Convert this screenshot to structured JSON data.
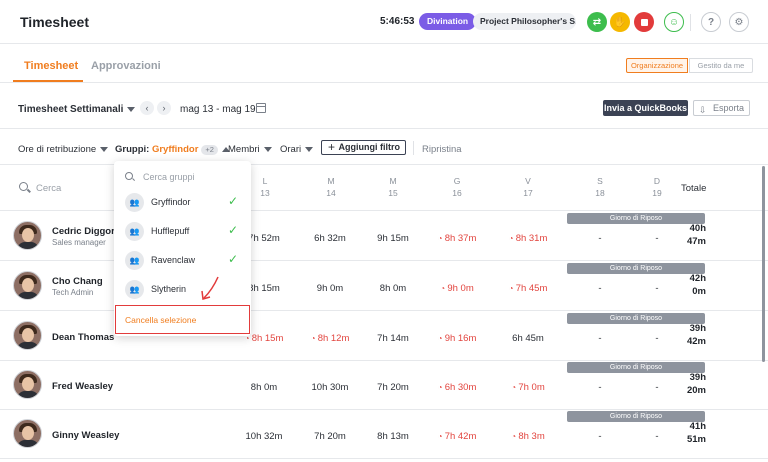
{
  "header": {
    "title": "Timesheet",
    "clock": "5:46:53",
    "activity_badge": "Divination",
    "project_badge": "Project Philosopher's S...",
    "colors": {
      "accent": "#f07d1f",
      "activity": "#7b5ce6",
      "qb_button": "#3b4254",
      "late": "#e2453f",
      "ok": "#3dbd4d"
    },
    "icons": [
      "refresh-icon",
      "hand-icon",
      "stop-icon",
      "user-icon",
      "help-icon",
      "settings-icon"
    ]
  },
  "tabs": {
    "timesheet": "Timesheet",
    "approvals": "Approvazioni"
  },
  "scope_toggle": {
    "org": "Organizzazione",
    "managed": "Gestito da me"
  },
  "period": {
    "label": "Timesheet Settimanali",
    "range": "mag 13 - mag 19",
    "quickbooks_button": "Invia a QuickBooks",
    "export_button": "Esporta"
  },
  "filters": {
    "pay_hours": "Ore di retribuzione",
    "groups_label": "Gruppi",
    "groups_value": "Gryffindor",
    "groups_extra": "+2",
    "members": "Membri",
    "schedules": "Orari",
    "add_filter": "Aggiungi filtro",
    "reset": "Ripristina"
  },
  "table": {
    "search_placeholder": "Cerca",
    "days": [
      {
        "letter": "L",
        "num": "13"
      },
      {
        "letter": "M",
        "num": "14"
      },
      {
        "letter": "M",
        "num": "15"
      },
      {
        "letter": "G",
        "num": "16"
      },
      {
        "letter": "V",
        "num": "17"
      },
      {
        "letter": "S",
        "num": "18"
      },
      {
        "letter": "D",
        "num": "19"
      }
    ],
    "total_label": "Totale",
    "rest_day_label": "Giorno di Riposo",
    "rows": [
      {
        "name": "Cedric Diggory",
        "role": "Sales manager",
        "cells": [
          "7h 52m",
          "6h 32m",
          "9h 15m",
          "8h 37m",
          "8h 31m"
        ],
        "late": [
          false,
          false,
          false,
          true,
          true
        ],
        "weekend": [
          "-",
          "-"
        ],
        "total_h": "40h",
        "total_m": "47m"
      },
      {
        "name": "Cho Chang",
        "role": "Tech Admin",
        "cells": [
          "8h 15m",
          "9h 0m",
          "8h 0m",
          "9h 0m",
          "7h 45m"
        ],
        "late": [
          false,
          false,
          false,
          true,
          true
        ],
        "weekend": [
          "-",
          "-"
        ],
        "total_h": "42h",
        "total_m": "0m"
      },
      {
        "name": "Dean Thomas",
        "role": "",
        "cells": [
          "8h 15m",
          "8h 12m",
          "7h 14m",
          "9h 16m",
          "6h 45m"
        ],
        "late": [
          true,
          true,
          false,
          true,
          false
        ],
        "weekend": [
          "-",
          "-"
        ],
        "total_h": "39h",
        "total_m": "42m"
      },
      {
        "name": "Fred Weasley",
        "role": "",
        "cells": [
          "8h 0m",
          "10h 30m",
          "7h 20m",
          "6h 30m",
          "7h 0m"
        ],
        "late": [
          false,
          false,
          false,
          true,
          true
        ],
        "weekend": [
          "-",
          "-"
        ],
        "total_h": "39h",
        "total_m": "20m"
      },
      {
        "name": "Ginny Weasley",
        "role": "",
        "cells": [
          "10h 32m",
          "7h 20m",
          "8h 13m",
          "7h 42m",
          "8h 3m"
        ],
        "late": [
          false,
          false,
          false,
          true,
          true
        ],
        "weekend": [
          "-",
          "-"
        ],
        "total_h": "41h",
        "total_m": "51m"
      }
    ]
  },
  "group_dropdown": {
    "search_placeholder": "Cerca gruppi",
    "items": [
      {
        "label": "Gryffindor",
        "checked": true
      },
      {
        "label": "Hufflepuff",
        "checked": true
      },
      {
        "label": "Ravenclaw",
        "checked": true
      },
      {
        "label": "Slytherin",
        "checked": false
      }
    ],
    "clear_label": "Cancella selezione"
  }
}
